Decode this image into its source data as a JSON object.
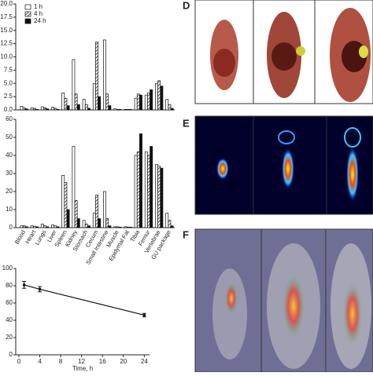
{
  "chart_data": [
    {
      "type": "bar",
      "series": [
        {
          "name": "1 h",
          "color": "#ffffff",
          "values": [
            0.7,
            0.4,
            0.6,
            0.5,
            3.2,
            9.5,
            2.0,
            5.0,
            13.2,
            0.2,
            0.1,
            2.2,
            2.8,
            5.0,
            2.0
          ]
        },
        {
          "name": "4 h",
          "color": "#555555",
          "pattern": "hatch",
          "values": [
            0.4,
            0.3,
            0.4,
            0.3,
            2.2,
            3.0,
            1.0,
            12.8,
            3.0,
            0.1,
            0.1,
            3.0,
            3.2,
            5.5,
            1.0
          ]
        },
        {
          "name": "24 h",
          "color": "#111111",
          "values": [
            0.2,
            0.1,
            0.2,
            0.1,
            0.8,
            1.0,
            0.3,
            2.5,
            0.8,
            0.1,
            0.1,
            2.8,
            3.8,
            4.5,
            0.3
          ]
        }
      ],
      "ylim": [
        0,
        20
      ],
      "yticks": [
        {
          "value": 0,
          "label": "0.0"
        },
        {
          "value": 2.5,
          "label": "2.5"
        },
        {
          "value": 5,
          "label": "5.0"
        },
        {
          "value": 7.5,
          "label": "7.5"
        },
        {
          "value": 10,
          "label": "10.0"
        },
        {
          "value": 12.5,
          "label": "12.5"
        },
        {
          "value": 15,
          "label": "15.0"
        },
        {
          "value": 17.5,
          "label": "17.5"
        },
        {
          "value": 20,
          "label": "20.0"
        }
      ],
      "legend": "top-left"
    },
    {
      "type": "bar",
      "categories": [
        "Blood",
        "Heart",
        "Lungs",
        "Liver",
        "Spleen",
        "Kidney",
        "Stomach",
        "Cecum",
        "Small Intestine",
        "Muscle",
        "Epidymal Fat",
        "Tibia",
        "Femur",
        "Vertebrae",
        "GU package"
      ],
      "series": [
        {
          "color": "#ffffff",
          "values": [
            1,
            1,
            2,
            1.5,
            29,
            45,
            4,
            8,
            20,
            0.5,
            0.5,
            40,
            42,
            35,
            8
          ]
        },
        {
          "color": "#555555",
          "pattern": "hatch",
          "values": [
            1,
            0.8,
            1,
            1,
            25,
            15,
            2,
            18,
            5,
            0.5,
            0.3,
            42,
            40,
            34,
            4
          ]
        },
        {
          "color": "#111111",
          "values": [
            0.5,
            0.5,
            0.5,
            0.5,
            10,
            5,
            1,
            5,
            1,
            0.3,
            0.3,
            52,
            45,
            33,
            1
          ]
        }
      ],
      "ylim": [
        0,
        60
      ],
      "yticks": [
        0,
        10,
        20,
        30,
        40,
        50,
        60
      ]
    },
    {
      "type": "line",
      "x": [
        1,
        4,
        24
      ],
      "values": [
        81,
        76,
        46
      ],
      "errors": [
        4,
        3,
        2
      ],
      "color": "#111111",
      "xlim": [
        0,
        25
      ],
      "xticks": [
        0,
        4,
        8,
        12,
        16,
        20,
        24
      ],
      "ylim": [
        0,
        100
      ],
      "yticks": [
        0,
        20,
        40,
        60,
        80,
        100
      ],
      "xlabel": "Time, h"
    }
  ],
  "panels": [
    {
      "label": "D"
    },
    {
      "label": "E"
    },
    {
      "label": "F"
    }
  ]
}
